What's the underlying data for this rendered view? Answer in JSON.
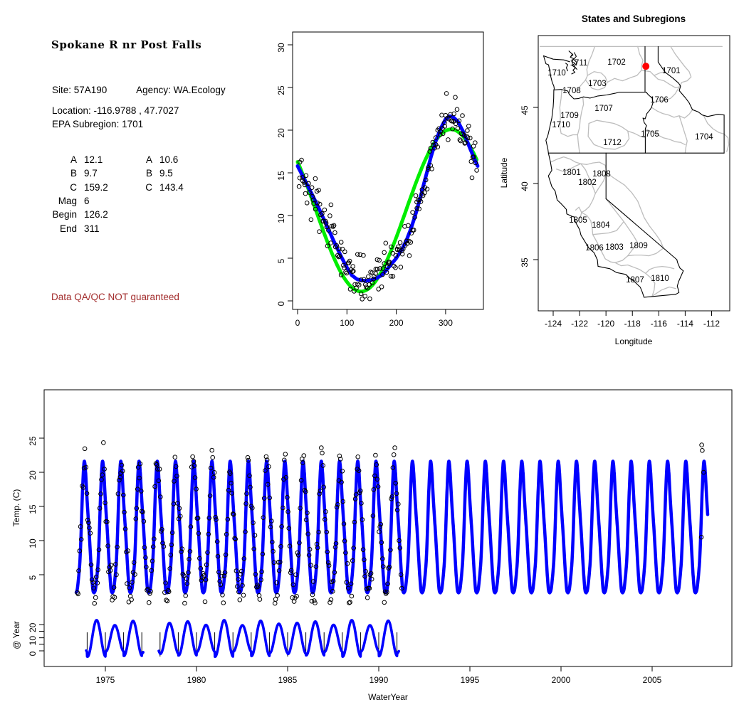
{
  "info_panel": {
    "title": "Spokane R nr Post Falls",
    "site": "Site: 57A190",
    "agency": "Agency: WA.Ecology",
    "location": "Location: -116.9788 , 47.7027",
    "epa_subregion": "EPA Subregion: 1701",
    "stats_left": [
      [
        "A",
        "12.1"
      ],
      [
        "B",
        "9.7"
      ],
      [
        "C",
        "159.2"
      ],
      [
        "Mag",
        "6"
      ],
      [
        "Begin",
        "126.2"
      ],
      [
        "End",
        "311"
      ]
    ],
    "stats_right": [
      [
        "A",
        "10.6"
      ],
      [
        "B",
        "9.5"
      ],
      [
        "C",
        "143.4"
      ]
    ],
    "warning": "Data QA/QC NOT guaranteed",
    "warning_color": "#a22c2c"
  },
  "colors": {
    "fit_blue": "#0000ff",
    "fit_green": "#00ee00",
    "boundary_gray": "#bdbdbd",
    "state_black": "#000000",
    "site_red": "#ff0000"
  },
  "chart_data": [
    {
      "id": "seasonal_fit",
      "type": "scatter",
      "title": "",
      "xlabel": "",
      "ylabel": "",
      "xlim": [
        -13,
        378
      ],
      "ylim": [
        -1,
        31
      ],
      "x_ticks": [
        0,
        100,
        200,
        300
      ],
      "y_ticks": [
        0,
        5,
        10,
        15,
        20,
        25,
        30
      ],
      "series": [
        {
          "name": "sine_fit",
          "type": "line",
          "color": "#00ee00",
          "model": {
            "mean": 10.6,
            "amplitude": 9.5,
            "peak_day": 311,
            "period": 365
          }
        },
        {
          "name": "smooth_fit",
          "type": "line",
          "color": "#0000ff",
          "points": [
            [
              0,
              15.8
            ],
            [
              15,
              14.1
            ],
            [
              30,
              12.4
            ],
            [
              45,
              10.6
            ],
            [
              60,
              8.7
            ],
            [
              75,
              6.8
            ],
            [
              90,
              5.0
            ],
            [
              100,
              3.9
            ],
            [
              110,
              3.0
            ],
            [
              120,
              2.55
            ],
            [
              130,
              2.4
            ],
            [
              140,
              2.35
            ],
            [
              150,
              2.45
            ],
            [
              160,
              2.65
            ],
            [
              170,
              3.0
            ],
            [
              180,
              3.6
            ],
            [
              190,
              4.3
            ],
            [
              200,
              5.0
            ],
            [
              210,
              5.9
            ],
            [
              220,
              7.0
            ],
            [
              230,
              8.5
            ],
            [
              240,
              10.3
            ],
            [
              250,
              12.4
            ],
            [
              260,
              14.6
            ],
            [
              270,
              16.8
            ],
            [
              280,
              18.7
            ],
            [
              290,
              20.2
            ],
            [
              300,
              21.3
            ],
            [
              308,
              21.65
            ],
            [
              315,
              21.55
            ],
            [
              325,
              21.0
            ],
            [
              335,
              19.9
            ],
            [
              345,
              18.5
            ],
            [
              355,
              17.1
            ],
            [
              365,
              15.8
            ]
          ]
        },
        {
          "name": "observations",
          "type": "scatter",
          "marker": "open-circle",
          "generator": {
            "seed": 12345,
            "n": 208,
            "x_start": 2,
            "x_step": 1.745,
            "noise_sd": 1.35
          }
        }
      ]
    },
    {
      "id": "map",
      "type": "map",
      "title": "States and Subregions",
      "xlabel": "Longitude",
      "ylabel": "Latitude",
      "xlim": [
        -125.1,
        -110.6
      ],
      "ylim": [
        31.6,
        49.7
      ],
      "x_ticks": [
        -124,
        -122,
        -120,
        -118,
        -116,
        -114,
        -112
      ],
      "y_ticks": [
        35,
        40,
        45
      ],
      "site_marker": {
        "lon": -116.9788,
        "lat": 47.7027,
        "color": "#ff0000"
      },
      "subregion_labels": [
        {
          "text": "1711",
          "lon": -122.06,
          "lat": 47.94
        },
        {
          "text": "1710",
          "lon": -123.73,
          "lat": 47.29
        },
        {
          "text": "1702",
          "lon": -119.2,
          "lat": 48.0
        },
        {
          "text": "1701",
          "lon": -115.05,
          "lat": 47.43
        },
        {
          "text": "1703",
          "lon": -120.66,
          "lat": 46.59
        },
        {
          "text": "1708",
          "lon": -122.6,
          "lat": 46.12
        },
        {
          "text": "1706",
          "lon": -115.96,
          "lat": 45.51
        },
        {
          "text": "1707",
          "lon": -120.17,
          "lat": 44.95
        },
        {
          "text": "1709",
          "lon": -122.76,
          "lat": 44.49
        },
        {
          "text": "1710",
          "lon": -123.4,
          "lat": 43.88
        },
        {
          "text": "1705",
          "lon": -116.66,
          "lat": 43.27
        },
        {
          "text": "1704",
          "lon": -112.57,
          "lat": 43.08
        },
        {
          "text": "1712",
          "lon": -119.52,
          "lat": 42.71
        },
        {
          "text": "1801",
          "lon": -122.6,
          "lat": 40.75
        },
        {
          "text": "1808",
          "lon": -120.33,
          "lat": 40.65
        },
        {
          "text": "1802",
          "lon": -121.41,
          "lat": 40.09
        },
        {
          "text": "1805",
          "lon": -122.11,
          "lat": 37.61
        },
        {
          "text": "1804",
          "lon": -120.39,
          "lat": 37.29
        },
        {
          "text": "1806",
          "lon": -120.87,
          "lat": 35.79
        },
        {
          "text": "1803",
          "lon": -119.36,
          "lat": 35.84
        },
        {
          "text": "1809",
          "lon": -117.53,
          "lat": 35.93
        },
        {
          "text": "1807",
          "lon": -117.8,
          "lat": 33.69
        },
        {
          "text": "1810",
          "lon": -115.91,
          "lat": 33.79
        }
      ]
    },
    {
      "id": "timeseries",
      "type": "line+scatter",
      "xlabel": "WaterYear",
      "ylabel_main": "Temp. (C)",
      "ylabel_sub": "@ Year",
      "xlim": [
        1971.6,
        2009.4
      ],
      "x_ticks": [
        1975,
        1980,
        1985,
        1990,
        1995,
        2000,
        2005
      ],
      "y_ticks_main": [
        5,
        10,
        15,
        20,
        25
      ],
      "y_ticks_sub": [
        0,
        5,
        10,
        15,
        20
      ],
      "y_tick_labels_sub": [
        0,
        10,
        20
      ],
      "main_series": {
        "name": "seasonal_fit_prediction",
        "color": "#0000ff",
        "t_start": 1973.4,
        "t_end": 2008.05,
        "peak_day_frac": 0.852
      },
      "sub_series": {
        "name": "within_year_pattern",
        "color": "#0000ff",
        "segments": [
          [
            1973.95,
            1977.08
          ],
          [
            1977.93,
            1991.1
          ]
        ],
        "mean": 9.5,
        "amplitude": 12,
        "peak_frac": 0.52
      },
      "year_marks": {
        "ranges": [
          [
            1974,
            1977
          ],
          [
            1978,
            1991
          ]
        ]
      },
      "observations": {
        "generator": {
          "seed": 999,
          "t_start": 1973.45,
          "t_end": 1991.3,
          "t_step": 0.048,
          "noise_sd": 1.5
        },
        "extra_points": [
          [
            2007.72,
            24.0
          ],
          [
            2007.75,
            23.2
          ],
          [
            2007.82,
            20.0
          ],
          [
            2007.7,
            10.5
          ]
        ]
      }
    }
  ]
}
